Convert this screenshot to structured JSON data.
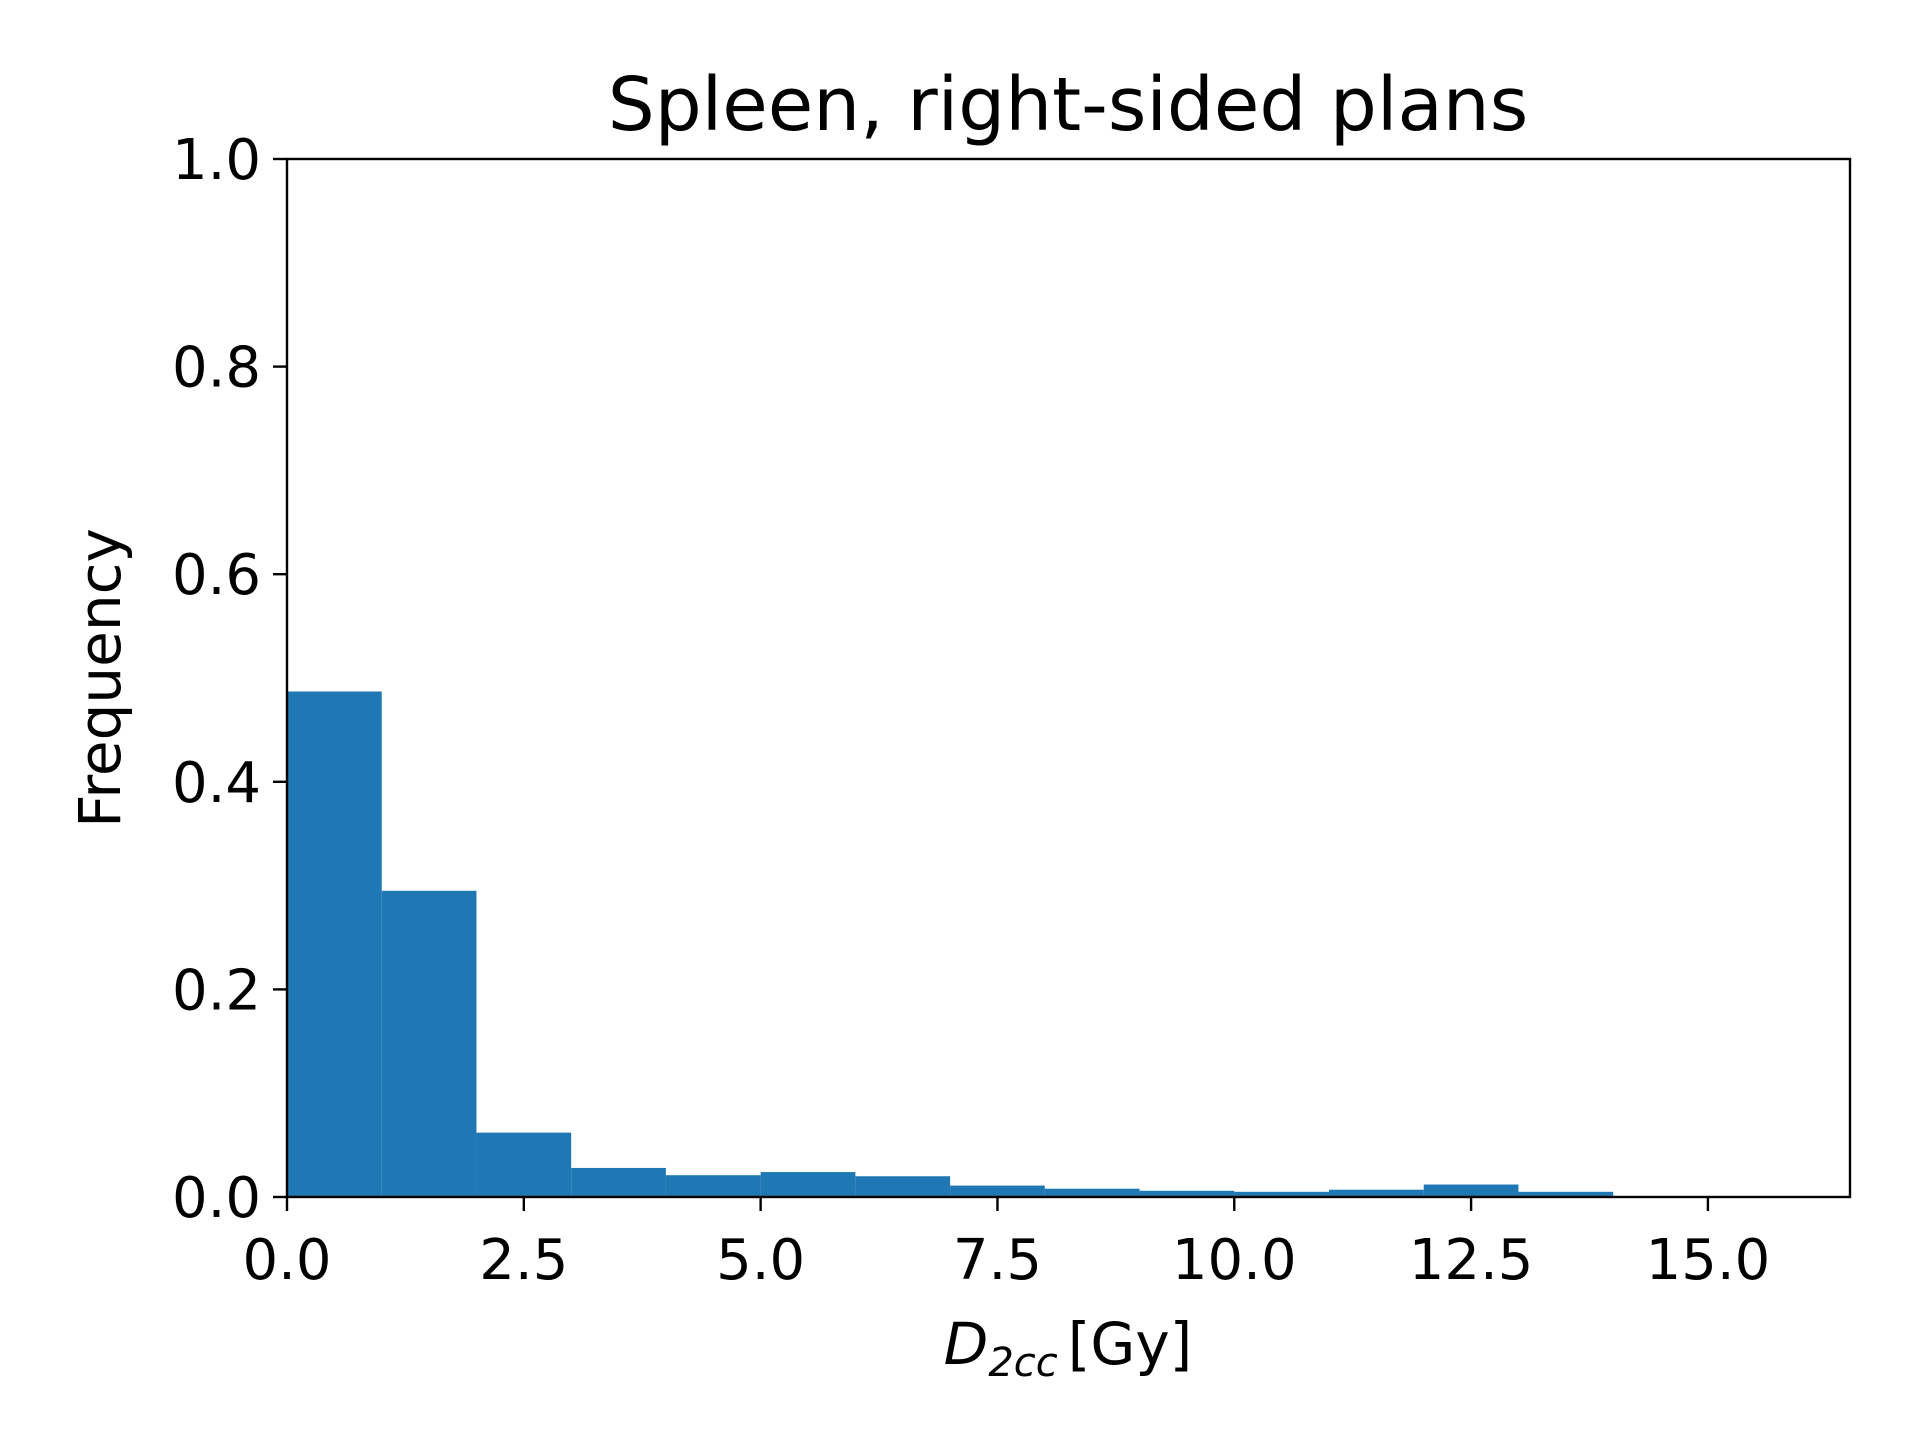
{
  "chart_data": {
    "type": "bar",
    "title": "Spleen, right-sided plans",
    "xlabel": {
      "symbol": "D",
      "subscript": "2cc",
      "unit": "[Gy]"
    },
    "ylabel": "Frequency",
    "xlim": [
      0,
      16.5
    ],
    "ylim": [
      0,
      1.0
    ],
    "x_ticks": [
      "0.0",
      "2.5",
      "5.0",
      "7.5",
      "10.0",
      "12.5",
      "15.0"
    ],
    "y_ticks": [
      "0.0",
      "0.2",
      "0.4",
      "0.6",
      "0.8",
      "1.0"
    ],
    "bins": [
      {
        "x0": 0,
        "x1": 1,
        "value": 0.487
      },
      {
        "x0": 1,
        "x1": 2,
        "value": 0.295
      },
      {
        "x0": 2,
        "x1": 3,
        "value": 0.062
      },
      {
        "x0": 3,
        "x1": 4,
        "value": 0.028
      },
      {
        "x0": 4,
        "x1": 5,
        "value": 0.021
      },
      {
        "x0": 5,
        "x1": 6,
        "value": 0.024
      },
      {
        "x0": 6,
        "x1": 7,
        "value": 0.02
      },
      {
        "x0": 7,
        "x1": 8,
        "value": 0.011
      },
      {
        "x0": 8,
        "x1": 9,
        "value": 0.008
      },
      {
        "x0": 9,
        "x1": 10,
        "value": 0.006
      },
      {
        "x0": 10,
        "x1": 11,
        "value": 0.005
      },
      {
        "x0": 11,
        "x1": 12,
        "value": 0.007
      },
      {
        "x0": 12,
        "x1": 13,
        "value": 0.012
      },
      {
        "x0": 13,
        "x1": 14,
        "value": 0.005
      }
    ],
    "bar_color": "#1f77b4",
    "grid": false,
    "legend": "none"
  }
}
